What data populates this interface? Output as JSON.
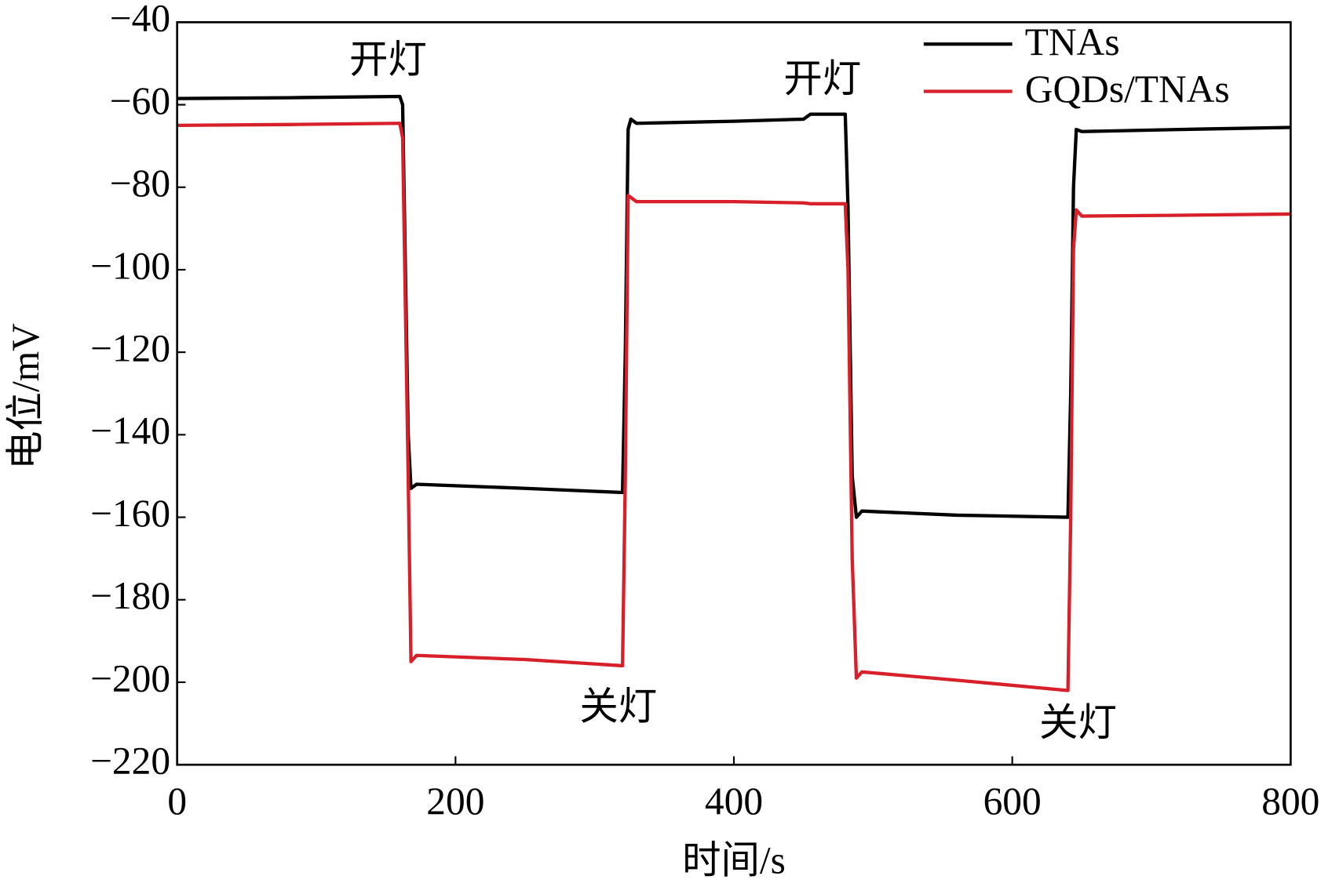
{
  "chart_data": {
    "type": "line",
    "x_label": "时间/s",
    "y_label": "电位/mV",
    "xlim": [
      0,
      800
    ],
    "xticks": [
      0,
      200,
      400,
      600,
      800
    ],
    "ylim": [
      -220,
      -40
    ],
    "yticks": [
      {
        "value": -220,
        "label": "−220"
      },
      {
        "value": -200,
        "label": "−200"
      },
      {
        "value": -180,
        "label": "−180"
      },
      {
        "value": -160,
        "label": "−160"
      },
      {
        "value": -140,
        "label": "−140"
      },
      {
        "value": -120,
        "label": "−120"
      },
      {
        "value": -100,
        "label": "−100"
      },
      {
        "value": -80,
        "label": "−80"
      },
      {
        "value": -60,
        "label": "−60"
      },
      {
        "value": -40,
        "label": "−40"
      }
    ],
    "legend": "upper right",
    "annotations": [
      "开灯",
      "开灯",
      "关灯",
      "关灯"
    ],
    "x": [
      0,
      80,
      160,
      162,
      166,
      168,
      172,
      250,
      320,
      322,
      324,
      326,
      330,
      400,
      450,
      455,
      480,
      482,
      485,
      488,
      492,
      560,
      640,
      642,
      644,
      646,
      650,
      720,
      800
    ],
    "series": [
      {
        "name": "TNAs",
        "color": "#000000",
        "values": [
          -58.5,
          -58.3,
          -58,
          -60,
          -140,
          -153,
          -152,
          -153,
          -154,
          -120,
          -66,
          -63.5,
          -64.5,
          -64,
          -63.5,
          -62.3,
          -62.3,
          -85,
          -150,
          -160,
          -158.5,
          -159.5,
          -160,
          -130,
          -80,
          -66,
          -66.5,
          -66,
          -65.5
        ]
      },
      {
        "name": "GQDs/TNAs",
        "color": "#d7202a",
        "values": [
          -65,
          -64.8,
          -64.5,
          -68,
          -150,
          -195,
          -193.5,
          -194.5,
          -196,
          -150,
          -82,
          -82.5,
          -83.5,
          -83.5,
          -83.8,
          -84,
          -84,
          -100,
          -170,
          -199,
          -197.5,
          -199.5,
          -202,
          -160,
          -95,
          -85.5,
          -87,
          -86.8,
          -86.5
        ]
      }
    ]
  }
}
